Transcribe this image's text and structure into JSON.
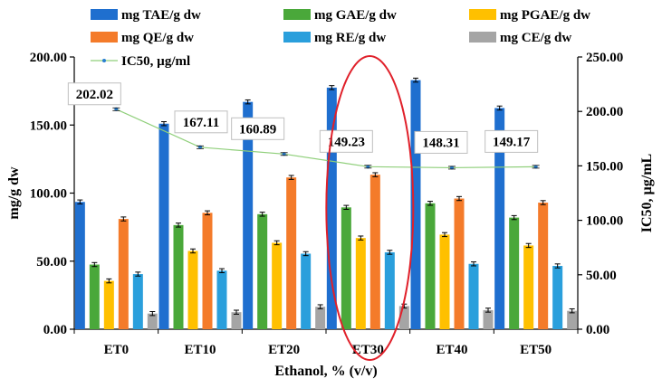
{
  "chart_data": {
    "type": "bar",
    "xlabel": "Ethanol, % (v/v)",
    "ylabel": "mg/g dw",
    "y2label": "IC50, µg/mL",
    "ylim": [
      0,
      200
    ],
    "y2lim": [
      0,
      250
    ],
    "yticks": [
      "0.00",
      "50.00",
      "100.00",
      "150.00",
      "200.00"
    ],
    "y2ticks": [
      "0.00",
      "50.00",
      "100.00",
      "150.00",
      "200.00",
      "250.00"
    ],
    "categories": [
      "ET0",
      "ET10",
      "ET20",
      "ET30",
      "ET40",
      "ET50"
    ],
    "series": [
      {
        "name": "mg TAE/g  dw",
        "color": "#1f6fcf",
        "values": [
          93.5,
          151,
          167,
          177.5,
          183,
          162.5
        ]
      },
      {
        "name": "mg GAE/g  dw",
        "color": "#4aa83a",
        "values": [
          47.5,
          76.5,
          84.5,
          89.5,
          92.5,
          82
        ]
      },
      {
        "name": "mg PGAE/g  dw",
        "color": "#ffc000",
        "values": [
          35.5,
          57.5,
          63.5,
          67,
          69.5,
          61.5
        ]
      },
      {
        "name": "mg QE/g  dw",
        "color": "#f47b2a",
        "values": [
          81,
          85.5,
          111.5,
          113.5,
          96,
          93
        ]
      },
      {
        "name": "mg RE/g  dw",
        "color": "#2a9fdc",
        "values": [
          40.5,
          43,
          55.5,
          56.5,
          48,
          46.5
        ]
      },
      {
        "name": "mg CE/g dw",
        "color": "#a5a5a5",
        "values": [
          11.5,
          12.5,
          16.5,
          17,
          14,
          13.5
        ]
      }
    ],
    "line_series": {
      "name": "IC50, µg/ml",
      "color": "#8fcf7a",
      "values": [
        202.02,
        167.11,
        160.89,
        149.23,
        148.31,
        149.17
      ],
      "labels": [
        "202.02",
        "167.11",
        "160.89",
        "149.23",
        "148.31",
        "149.17"
      ]
    },
    "highlight": {
      "category": "ET30",
      "shape": "ellipse",
      "color": "#e0202a"
    }
  }
}
